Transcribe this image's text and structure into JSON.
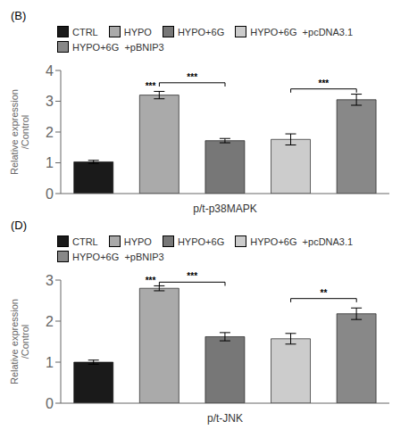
{
  "chart_data": [
    {
      "type": "bar",
      "title": "(B)",
      "xlabel": "p/t-p38MAPK",
      "ylabel": "Relative expression\n/Control",
      "categories": [
        "CTRL",
        "HYPO",
        "HYPO+6G",
        "HYPO+6G  +pcDNA3.1",
        "HYPO+6G  +pBNIP3"
      ],
      "values": [
        1.03,
        3.2,
        1.72,
        1.76,
        3.05
      ],
      "errors": [
        0.05,
        0.12,
        0.07,
        0.18,
        0.18
      ],
      "colors": [
        "#1a1a1a",
        "#aaaaaa",
        "#777777",
        "#cccccc",
        "#888888"
      ],
      "ylim": [
        0,
        4
      ],
      "yticks": [
        0,
        1,
        2,
        3,
        4
      ],
      "legend": "top",
      "tick_labels": "y",
      "annotations": [
        {
          "bar": 1,
          "text": "***"
        },
        {
          "x1": 1,
          "x2": 2,
          "y": 3.6,
          "text": "***"
        },
        {
          "x1": 3,
          "x2": 4,
          "y": 3.4,
          "text": "***"
        }
      ]
    },
    {
      "type": "bar",
      "title": "(D)",
      "xlabel": "p/t-JNK",
      "ylabel": "Relative expression\n/Control",
      "categories": [
        "CTRL",
        "HYPO",
        "HYPO+6G",
        "HYPO+6G  +pcDNA3.1",
        "HYPO+6G  +pBNIP3"
      ],
      "values": [
        1.0,
        2.8,
        1.62,
        1.57,
        2.18
      ],
      "errors": [
        0.05,
        0.06,
        0.1,
        0.13,
        0.14
      ],
      "colors": [
        "#1a1a1a",
        "#aaaaaa",
        "#777777",
        "#cccccc",
        "#888888"
      ],
      "ylim": [
        0,
        3
      ],
      "yticks": [
        0,
        1,
        2,
        3
      ],
      "legend": "top",
      "tick_labels": "y",
      "annotations": [
        {
          "bar": 1,
          "text": "***"
        },
        {
          "x1": 1,
          "x2": 2,
          "y": 2.95,
          "text": "***"
        },
        {
          "x1": 3,
          "x2": 4,
          "y": 2.55,
          "text": "**"
        }
      ]
    }
  ]
}
